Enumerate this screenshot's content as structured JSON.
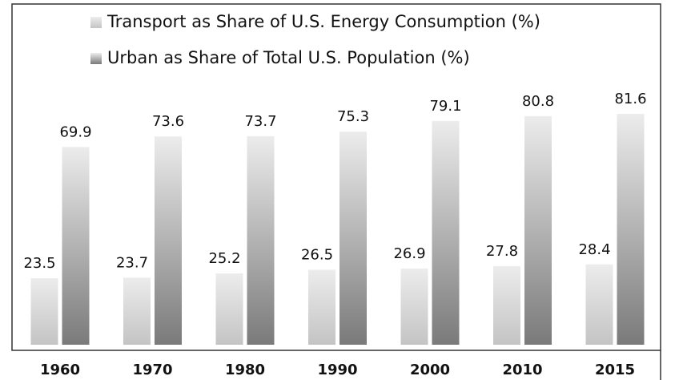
{
  "chart_data": {
    "type": "bar",
    "categories": [
      "1960",
      "1970",
      "1980",
      "1990",
      "2000",
      "2010",
      "2015"
    ],
    "series": [
      {
        "name": "Transport as Share of U.S. Energy Consumption (%)",
        "color": "#c4c4c4",
        "values": [
          23.5,
          23.7,
          25.2,
          26.5,
          26.9,
          27.8,
          28.4
        ]
      },
      {
        "name": "Urban as Share of Total U.S. Population (%)",
        "color": "#7a7a7a",
        "values": [
          69.9,
          73.6,
          73.7,
          75.3,
          79.1,
          80.8,
          81.6
        ]
      }
    ],
    "legend": "top-left"
  }
}
